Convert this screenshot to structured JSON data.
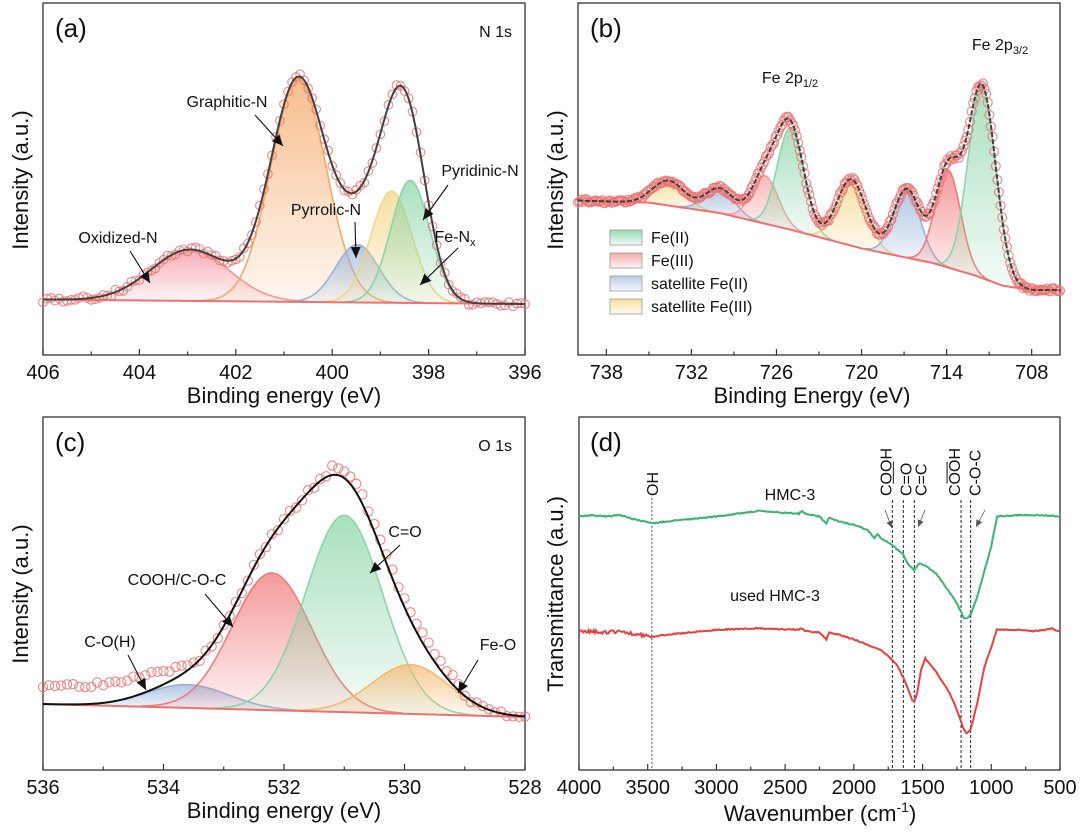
{
  "figure": {
    "panels": [
      "a",
      "b",
      "c",
      "d"
    ]
  },
  "chart_data": [
    {
      "id": "a",
      "type": "area",
      "panel_label": "(a)",
      "title": "N 1s",
      "xlabel": "Binding energy (eV)",
      "ylabel": "Intensity (a.u.)",
      "xlim": [
        406,
        396
      ],
      "x_ticks": [
        406,
        404,
        402,
        400,
        398,
        396
      ],
      "x_minor_step": 1,
      "y_ticks_visible": false,
      "baseline": {
        "x": [
          406,
          396
        ],
        "y": [
          0.02,
          0.0
        ]
      },
      "peaks": [
        {
          "name": "Oxidized-N",
          "center": 402.95,
          "height": 0.23,
          "fwhm": 1.9,
          "color": "#f08c96"
        },
        {
          "name": "Graphitic-N",
          "center": 400.7,
          "height": 1.0,
          "fwhm": 1.35,
          "color": "#f5a25a"
        },
        {
          "name": "Pyrrolic-N",
          "center": 399.48,
          "height": 0.26,
          "fwhm": 1.05,
          "color": "#8eaed6"
        },
        {
          "name": "Fe-Nx",
          "center": 398.77,
          "height": 0.5,
          "fwhm": 1.0,
          "color": "#f2d27a"
        },
        {
          "name": "Pyridinic-N",
          "center": 398.38,
          "height": 0.55,
          "fwhm": 0.95,
          "color": "#84d3a3"
        }
      ],
      "envelope_color": "#404040",
      "data_marker_color": "#f07070",
      "annotations": [
        {
          "text": "Graphitic-N",
          "target": 400.9
        },
        {
          "text": "Pyrrolic-N",
          "target": 399.5
        },
        {
          "text": "Pyridinic-N",
          "target": 398.2
        },
        {
          "text": "Fe-N",
          "subscript": "x",
          "target": 398.1
        },
        {
          "text": "Oxidized-N",
          "target": 403.6
        }
      ]
    },
    {
      "id": "b",
      "type": "area",
      "panel_label": "(b)",
      "title_labels": [
        {
          "text": "Fe 2p",
          "subscript": "1/2",
          "at": 725.3
        },
        {
          "text": "Fe 2p",
          "subscript": "3/2",
          "at": 711.5
        }
      ],
      "xlabel": "Binding Energy (eV)",
      "ylabel": "Intensity (a.u.)",
      "xlim": [
        740,
        706
      ],
      "x_ticks": [
        738,
        732,
        726,
        720,
        714,
        708
      ],
      "x_minor_step": 3,
      "y_ticks_visible": false,
      "background": {
        "x": [
          740,
          735,
          730,
          725,
          720,
          715,
          712,
          710,
          708,
          706
        ],
        "y": [
          0.43,
          0.42,
          0.37,
          0.29,
          0.2,
          0.13,
          0.07,
          0.02,
          0.0,
          0.0
        ]
      },
      "peaks": [
        {
          "name": "satellite Fe(III)",
          "center": 733.6,
          "height": 0.12,
          "fwhm": 2.6,
          "color": "#f2d27a"
        },
        {
          "name": "satellite Fe(II)",
          "center": 730.0,
          "height": 0.12,
          "fwhm": 2.4,
          "color": "#8eaed6"
        },
        {
          "name": "Fe(III)",
          "center": 726.8,
          "height": 0.23,
          "fwhm": 2.2,
          "color": "#f59a9a"
        },
        {
          "name": "Fe(II)",
          "center": 725.0,
          "height": 0.49,
          "fwhm": 2.2,
          "color": "#84d3a3"
        },
        {
          "name": "satellite Fe(III)",
          "center": 720.7,
          "height": 0.32,
          "fwhm": 2.4,
          "color": "#f2d27a"
        },
        {
          "name": "satellite Fe(II)",
          "center": 716.8,
          "height": 0.33,
          "fwhm": 2.2,
          "color": "#8eaed6"
        },
        {
          "name": "Fe(III)",
          "center": 713.9,
          "height": 0.47,
          "fwhm": 2.1,
          "color": "#f07070"
        },
        {
          "name": "Fe(II)",
          "center": 711.5,
          "height": 0.92,
          "fwhm": 2.3,
          "color": "#84d3a3"
        }
      ],
      "legend": {
        "placement": "lower-left",
        "entries": [
          {
            "label": "Fe(II)",
            "color": "#84d3a3"
          },
          {
            "label": "Fe(III)",
            "color": "#f59a9a"
          },
          {
            "label": "satellite Fe(II)",
            "color": "#aac3e2"
          },
          {
            "label": "satellite Fe(III)",
            "color": "#f5d98a"
          }
        ]
      },
      "envelope_color": "#404040",
      "data_marker_color": "#f07070"
    },
    {
      "id": "c",
      "type": "area",
      "panel_label": "(c)",
      "title": "O 1s",
      "xlabel": "Binding energy (eV)",
      "ylabel": "Intensity (a.u.)",
      "xlim": [
        536,
        528
      ],
      "x_ticks": [
        536,
        534,
        532,
        530,
        528
      ],
      "x_minor_step": 1,
      "y_ticks_visible": false,
      "baseline": {
        "x": [
          536,
          528
        ],
        "y": [
          0.05,
          0.0
        ]
      },
      "peaks": [
        {
          "name": "C-O(H)",
          "center": 533.6,
          "height": 0.09,
          "fwhm": 1.6,
          "color": "#8eaed6"
        },
        {
          "name": "COOH/C-O-C",
          "center": 532.2,
          "height": 0.53,
          "fwhm": 1.55,
          "color": "#f07070"
        },
        {
          "name": "C=O",
          "center": 531.0,
          "height": 0.76,
          "fwhm": 1.5,
          "color": "#84d3a3"
        },
        {
          "name": "Fe-O",
          "center": 529.9,
          "height": 0.19,
          "fwhm": 1.5,
          "color": "#f5b56a"
        }
      ],
      "envelope_color": "#111111",
      "data_marker_color": "#f07070",
      "annotations": [
        {
          "text": "C=O",
          "target": 530.7
        },
        {
          "text": "COOH/C-O-C",
          "target": 532.6
        },
        {
          "text": "C-O(H)",
          "target": 534.1
        },
        {
          "text": "Fe-O",
          "target": 529.3
        }
      ]
    },
    {
      "id": "d",
      "type": "line",
      "panel_label": "(d)",
      "xlabel": "Wavenumber (cm",
      "xlabel_sup": "-1",
      "xlabel_end": ")",
      "ylabel": "Transmittance (a.u.)",
      "xlim": [
        4000,
        500
      ],
      "x_ticks": [
        4000,
        3500,
        3000,
        2500,
        2000,
        1500,
        1000,
        500
      ],
      "x_minor_step": 250,
      "y_ticks_visible": false,
      "series": [
        {
          "name": "HMC-3",
          "color": "#3cb371",
          "x": [
            4000,
            3900,
            3800,
            3700,
            3600,
            3470,
            3300,
            3000,
            2700,
            2400,
            2380,
            2350,
            2250,
            2200,
            2180,
            2100,
            2000,
            1900,
            1850,
            1830,
            1800,
            1720,
            1640,
            1600,
            1560,
            1520,
            1480,
            1400,
            1300,
            1250,
            1200,
            1180,
            1150,
            1100,
            1050,
            1000,
            958,
            800,
            650,
            500
          ],
          "y": [
            0.98,
            0.985,
            0.98,
            0.985,
            0.97,
            0.955,
            0.965,
            0.98,
            1.0,
            0.99,
            1.0,
            0.99,
            0.98,
            0.955,
            0.975,
            0.96,
            0.95,
            0.93,
            0.9,
            0.915,
            0.9,
            0.875,
            0.84,
            0.8,
            0.785,
            0.81,
            0.8,
            0.77,
            0.7,
            0.66,
            0.61,
            0.605,
            0.62,
            0.69,
            0.78,
            0.87,
            0.98,
            0.985,
            0.985,
            0.98
          ]
        },
        {
          "name": "used HMC-3",
          "color": "#e84040",
          "x": [
            4000,
            3900,
            3800,
            3700,
            3600,
            3470,
            3300,
            3000,
            2700,
            2400,
            2380,
            2350,
            2250,
            2200,
            2180,
            2100,
            2000,
            1900,
            1850,
            1800,
            1720,
            1680,
            1640,
            1600,
            1575,
            1560,
            1540,
            1510,
            1480,
            1450,
            1400,
            1300,
            1250,
            1200,
            1180,
            1150,
            1100,
            1050,
            1000,
            960,
            800,
            700,
            600,
            570,
            540,
            500
          ],
          "y": [
            0.56,
            0.56,
            0.555,
            0.56,
            0.55,
            0.54,
            0.55,
            0.565,
            0.57,
            0.565,
            0.57,
            0.56,
            0.555,
            0.53,
            0.555,
            0.545,
            0.53,
            0.51,
            0.5,
            0.49,
            0.455,
            0.43,
            0.39,
            0.34,
            0.305,
            0.3,
            0.33,
            0.42,
            0.46,
            0.44,
            0.41,
            0.33,
            0.27,
            0.2,
            0.185,
            0.2,
            0.3,
            0.43,
            0.5,
            0.565,
            0.565,
            0.56,
            0.565,
            0.57,
            0.565,
            0.56
          ]
        }
      ],
      "vlines": [
        {
          "x": 3470,
          "label": "OH",
          "style": "dotted"
        },
        {
          "x": 1720,
          "label": "COOH",
          "overline": true,
          "style": "dashed"
        },
        {
          "x": 1640,
          "label": "C=O",
          "style": "dashed"
        },
        {
          "x": 1560,
          "label": "C=C",
          "style": "dashed"
        },
        {
          "x": 1220,
          "label": "COOH",
          "underline": true,
          "style": "dashed"
        },
        {
          "x": 1150,
          "label": "C-O-C",
          "style": "dashed"
        }
      ],
      "series_labels": [
        {
          "text": "HMC-3",
          "series": 0
        },
        {
          "text": "used HMC-3",
          "series": 1
        }
      ]
    }
  ]
}
